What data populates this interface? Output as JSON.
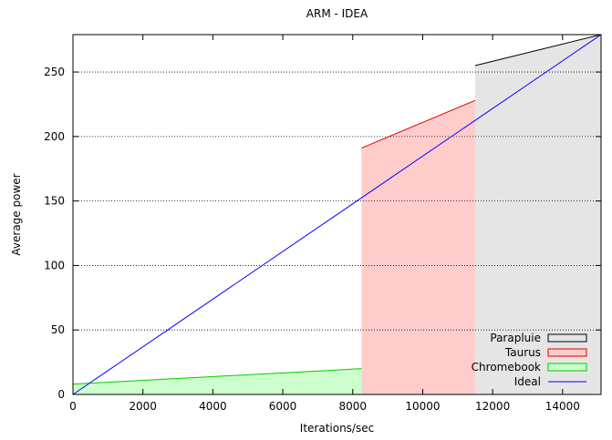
{
  "chart_data": {
    "type": "area",
    "title": "ARM - IDEA",
    "xlabel": "Iterations/sec",
    "ylabel": "Average power",
    "xlim": [
      0,
      15100
    ],
    "ylim": [
      0,
      279
    ],
    "xticks": [
      0,
      2000,
      4000,
      6000,
      8000,
      10000,
      12000,
      14000
    ],
    "yticks": [
      0,
      50,
      100,
      150,
      200,
      250
    ],
    "grid": "horizontal dotted",
    "legend_position": "bottom-right",
    "series": [
      {
        "name": "Parapluie",
        "kind": "filled",
        "color": "#000000",
        "fill": "#e5e5e5",
        "points": [
          [
            11500,
            255
          ],
          [
            15100,
            279
          ]
        ]
      },
      {
        "name": "Taurus",
        "kind": "filled",
        "color": "#e00000",
        "fill": "#ffcccc",
        "points": [
          [
            8250,
            191
          ],
          [
            11500,
            228
          ]
        ]
      },
      {
        "name": "Chromebook",
        "kind": "filled",
        "color": "#00cc00",
        "fill": "#ccffcc",
        "points": [
          [
            0,
            8
          ],
          [
            8250,
            20
          ]
        ]
      },
      {
        "name": "Ideal",
        "kind": "line",
        "color": "#0000ff",
        "points": [
          [
            0,
            0
          ],
          [
            15100,
            279
          ]
        ]
      }
    ]
  }
}
